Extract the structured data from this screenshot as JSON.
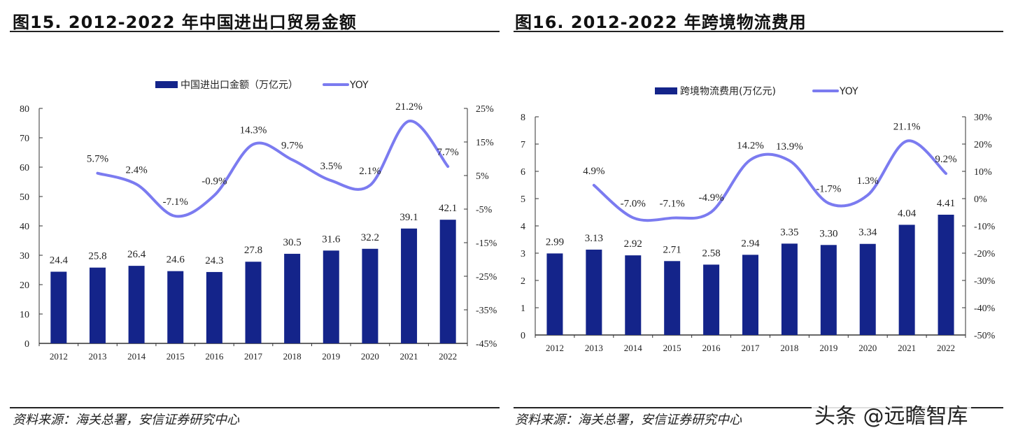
{
  "figures": [
    {
      "title": "图15. 2012-2022 年中国进出口贸易金额",
      "source": "资料来源：海关总署，安信证券研究中心"
    },
    {
      "title": "图16. 2012-2022 年跨境物流费用",
      "source": "资料来源：海关总署，安信证券研究中心"
    }
  ],
  "watermark": "头条 @远瞻智库",
  "colors": {
    "bar": "#14248a",
    "line": "#7b7bf0"
  },
  "chart_data": [
    {
      "type": "bar+line",
      "categories": [
        "2012",
        "2013",
        "2014",
        "2015",
        "2016",
        "2017",
        "2018",
        "2019",
        "2020",
        "2021",
        "2022"
      ],
      "series": [
        {
          "name": "中国进出口金额（万亿元）",
          "type": "bar",
          "axis": "left",
          "values": [
            24.4,
            25.8,
            26.4,
            24.6,
            24.3,
            27.8,
            30.5,
            31.6,
            32.2,
            39.1,
            42.1
          ],
          "labels": [
            "24.4",
            "25.8",
            "26.4",
            "24.6",
            "24.3",
            "27.8",
            "30.5",
            "31.6",
            "32.2",
            "39.1",
            "42.1"
          ]
        },
        {
          "name": "YOY",
          "type": "line",
          "axis": "right",
          "values": [
            null,
            5.7,
            2.4,
            -7.1,
            -0.9,
            14.3,
            9.7,
            3.5,
            2.1,
            21.2,
            7.7
          ],
          "labels": [
            "",
            "5.7%",
            "2.4%",
            "-7.1%",
            "-0.9%",
            "14.3%",
            "9.7%",
            "3.5%",
            "2.1%",
            "21.2%",
            "7.7%"
          ]
        }
      ],
      "ylim_left": [
        0,
        80
      ],
      "yticks_left": [
        "0",
        "10",
        "20",
        "30",
        "40",
        "50",
        "60",
        "70",
        "80"
      ],
      "ylim_right": [
        -45,
        25
      ],
      "yticks_right": [
        "-45%",
        "-35%",
        "-25%",
        "-15%",
        "-5%",
        "5%",
        "15%",
        "25%"
      ],
      "legend": "top",
      "grid": false
    },
    {
      "type": "bar+line",
      "categories": [
        "2012",
        "2013",
        "2014",
        "2015",
        "2016",
        "2017",
        "2018",
        "2019",
        "2020",
        "2021",
        "2022"
      ],
      "series": [
        {
          "name": "跨境物流费用(万亿元)",
          "type": "bar",
          "axis": "left",
          "values": [
            2.99,
            3.13,
            2.92,
            2.71,
            2.58,
            2.94,
            3.35,
            3.3,
            3.34,
            4.04,
            4.41
          ],
          "labels": [
            "2.99",
            "3.13",
            "2.92",
            "2.71",
            "2.58",
            "2.94",
            "3.35",
            "3.30",
            "3.34",
            "4.04",
            "4.41"
          ]
        },
        {
          "name": "YOY",
          "type": "line",
          "axis": "right",
          "values": [
            null,
            4.9,
            -7.0,
            -7.1,
            -4.9,
            14.2,
            13.9,
            -1.7,
            1.3,
            21.1,
            9.2
          ],
          "labels": [
            "",
            "4.9%",
            "-7.0%",
            "-7.1%",
            "-4.9%",
            "14.2%",
            "13.9%",
            "-1.7%",
            "1.3%",
            "21.1%",
            "9.2%"
          ]
        }
      ],
      "ylim_left": [
        0,
        8
      ],
      "yticks_left": [
        "0",
        "1",
        "2",
        "3",
        "4",
        "5",
        "6",
        "7",
        "8"
      ],
      "ylim_right": [
        -50,
        30
      ],
      "yticks_right": [
        "-50%",
        "-40%",
        "-30%",
        "-20%",
        "-10%",
        "0%",
        "10%",
        "20%",
        "30%"
      ],
      "legend": "top",
      "grid": false
    }
  ]
}
